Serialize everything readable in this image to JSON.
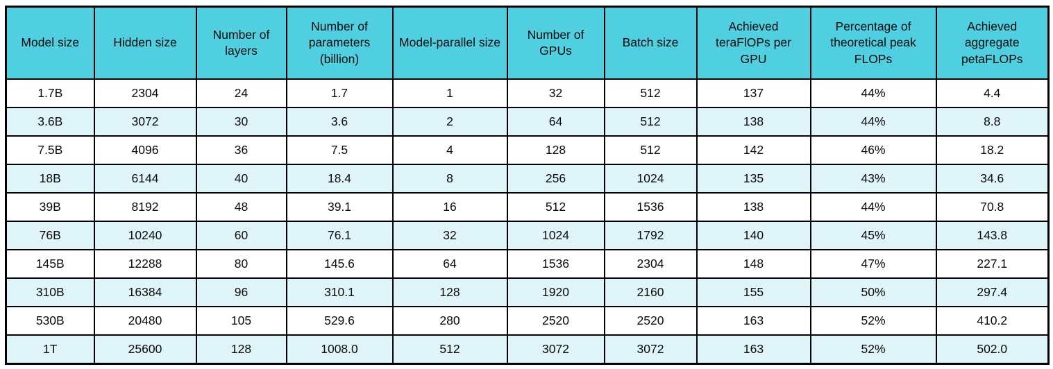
{
  "chart_data": {
    "type": "table",
    "title": "",
    "columns": [
      "Model size",
      "Hidden size",
      "Number of layers",
      "Number of parameters (billion)",
      "Model-parallel size",
      "Number of GPUs",
      "Batch size",
      "Achieved teraFlOPs per GPU",
      "Percentage of theoretical peak FLOPs",
      "Achieved aggregate petaFLOPs"
    ],
    "rows": [
      [
        "1.7B",
        "2304",
        "24",
        "1.7",
        "1",
        "32",
        "512",
        "137",
        "44%",
        "4.4"
      ],
      [
        "3.6B",
        "3072",
        "30",
        "3.6",
        "2",
        "64",
        "512",
        "138",
        "44%",
        "8.8"
      ],
      [
        "7.5B",
        "4096",
        "36",
        "7.5",
        "4",
        "128",
        "512",
        "142",
        "46%",
        "18.2"
      ],
      [
        "18B",
        "6144",
        "40",
        "18.4",
        "8",
        "256",
        "1024",
        "135",
        "43%",
        "34.6"
      ],
      [
        "39B",
        "8192",
        "48",
        "39.1",
        "16",
        "512",
        "1536",
        "138",
        "44%",
        "70.8"
      ],
      [
        "76B",
        "10240",
        "60",
        "76.1",
        "32",
        "1024",
        "1792",
        "140",
        "45%",
        "143.8"
      ],
      [
        "145B",
        "12288",
        "80",
        "145.6",
        "64",
        "1536",
        "2304",
        "148",
        "47%",
        "227.1"
      ],
      [
        "310B",
        "16384",
        "96",
        "310.1",
        "128",
        "1920",
        "2160",
        "155",
        "50%",
        "297.4"
      ],
      [
        "530B",
        "20480",
        "105",
        "529.6",
        "280",
        "2520",
        "2520",
        "163",
        "52%",
        "410.2"
      ],
      [
        "1T",
        "25600",
        "128",
        "1008.0",
        "512",
        "3072",
        "3072",
        "163",
        "52%",
        "502.0"
      ]
    ],
    "layout": {
      "header_lines_max": 3,
      "striping": "odd data rows white, even data rows pale cyan",
      "grid": "full black gridlines"
    },
    "colors": {
      "header_bg": "#4FCFE0",
      "row_bg": "#FFFFFF",
      "row_alt_bg": "#E0F5F9",
      "border": "#000000",
      "text": "#0A0A0A"
    }
  }
}
